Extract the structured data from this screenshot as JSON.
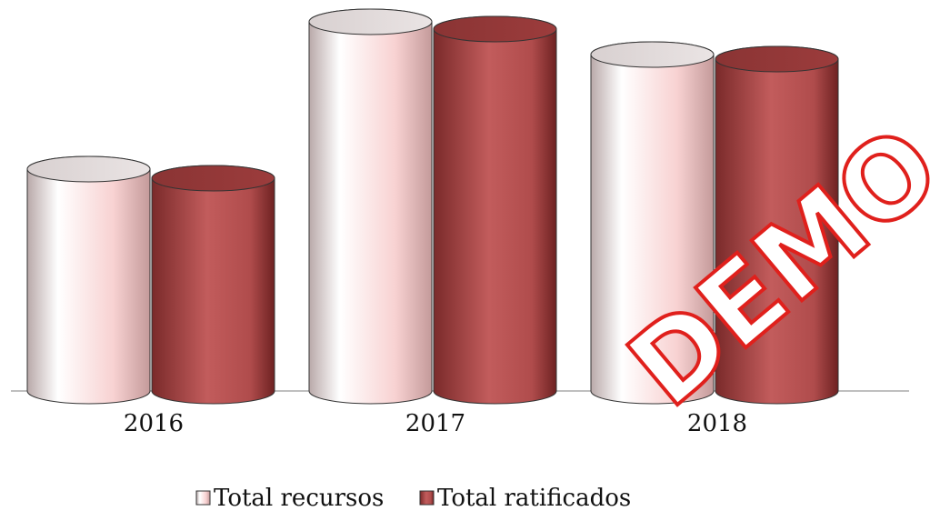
{
  "chart_data": {
    "type": "cylinder-bar",
    "categories": [
      "2016",
      "2017",
      "2018"
    ],
    "series": [
      {
        "name": "Total recursos",
        "color": "#f6d4d4",
        "values": [
          244,
          406,
          370
        ]
      },
      {
        "name": "Total ratificados",
        "color": "#a84646",
        "values": [
          234,
          398,
          365
        ]
      }
    ],
    "watermark": "DEMO"
  }
}
